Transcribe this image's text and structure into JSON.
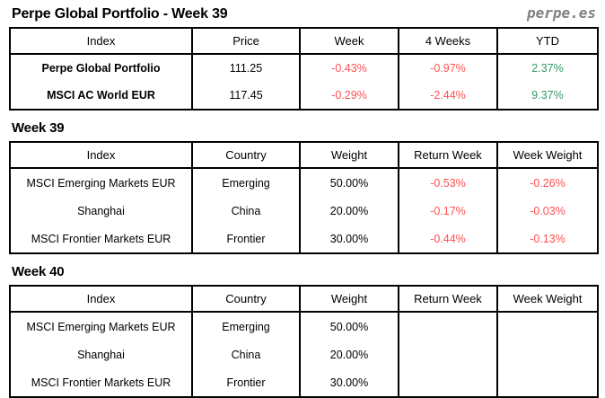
{
  "page": {
    "title": "Perpe Global Portfolio - Week 39",
    "logo": "perpe.es"
  },
  "colors": {
    "negative": "#ff5050",
    "positive": "#339966",
    "logo_gray": "#808080"
  },
  "summary_table": {
    "headers": [
      "Index",
      "Price",
      "Week",
      "4 Weeks",
      "YTD"
    ],
    "rows": [
      {
        "index": "Perpe Global Portfolio",
        "price": "111.25",
        "week": "-0.43%",
        "four_weeks": "-0.97%",
        "ytd": "2.37%"
      },
      {
        "index": "MSCI AC World EUR",
        "price": "117.45",
        "week": "-0.29%",
        "four_weeks": "-2.44%",
        "ytd": "9.37%"
      }
    ]
  },
  "week39": {
    "heading": "Week 39",
    "headers": [
      "Index",
      "Country",
      "Weight",
      "Return Week",
      "Week Weight"
    ],
    "rows": [
      {
        "index": "MSCI Emerging Markets EUR",
        "country": "Emerging",
        "weight": "50.00%",
        "return_week": "-0.53%",
        "week_weight": "-0.26%"
      },
      {
        "index": "Shanghai",
        "country": "China",
        "weight": "20.00%",
        "return_week": "-0.17%",
        "week_weight": "-0.03%"
      },
      {
        "index": "MSCI Frontier Markets EUR",
        "country": "Frontier",
        "weight": "30.00%",
        "return_week": "-0.44%",
        "week_weight": "-0.13%"
      }
    ]
  },
  "week40": {
    "heading": "Week 40",
    "headers": [
      "Index",
      "Country",
      "Weight",
      "Return Week",
      "Week Weight"
    ],
    "rows": [
      {
        "index": "MSCI Emerging Markets EUR",
        "country": "Emerging",
        "weight": "50.00%",
        "return_week": "",
        "week_weight": ""
      },
      {
        "index": "Shanghai",
        "country": "China",
        "weight": "20.00%",
        "return_week": "",
        "week_weight": ""
      },
      {
        "index": "MSCI Frontier Markets EUR",
        "country": "Frontier",
        "weight": "30.00%",
        "return_week": "",
        "week_weight": ""
      }
    ]
  }
}
